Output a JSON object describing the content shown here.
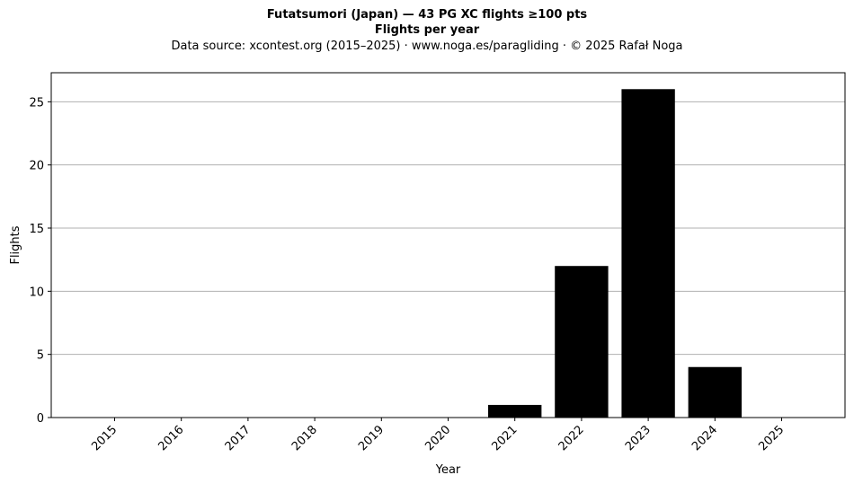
{
  "header": {
    "title": "Futatsumori (Japan)  —  43 PG XC flights ≥100 pts",
    "subtitle": "Flights per year",
    "source": "Data source: xcontest.org (2015–2025)  ·  www.noga.es/paragliding  ·  © 2025 Rafał Noga"
  },
  "chart_data": {
    "type": "bar",
    "categories": [
      "2015",
      "2016",
      "2017",
      "2018",
      "2019",
      "2020",
      "2021",
      "2022",
      "2023",
      "2024",
      "2025"
    ],
    "values": [
      0,
      0,
      0,
      0,
      0,
      0,
      1,
      12,
      26,
      4,
      0
    ],
    "xlabel": "Year",
    "ylabel": "Flights",
    "ylim": [
      0,
      27.3
    ],
    "yticks": [
      0,
      5,
      10,
      15,
      20,
      25
    ],
    "grid": "y",
    "bar_color": "#000000",
    "grid_color": "#b0b0b0"
  }
}
